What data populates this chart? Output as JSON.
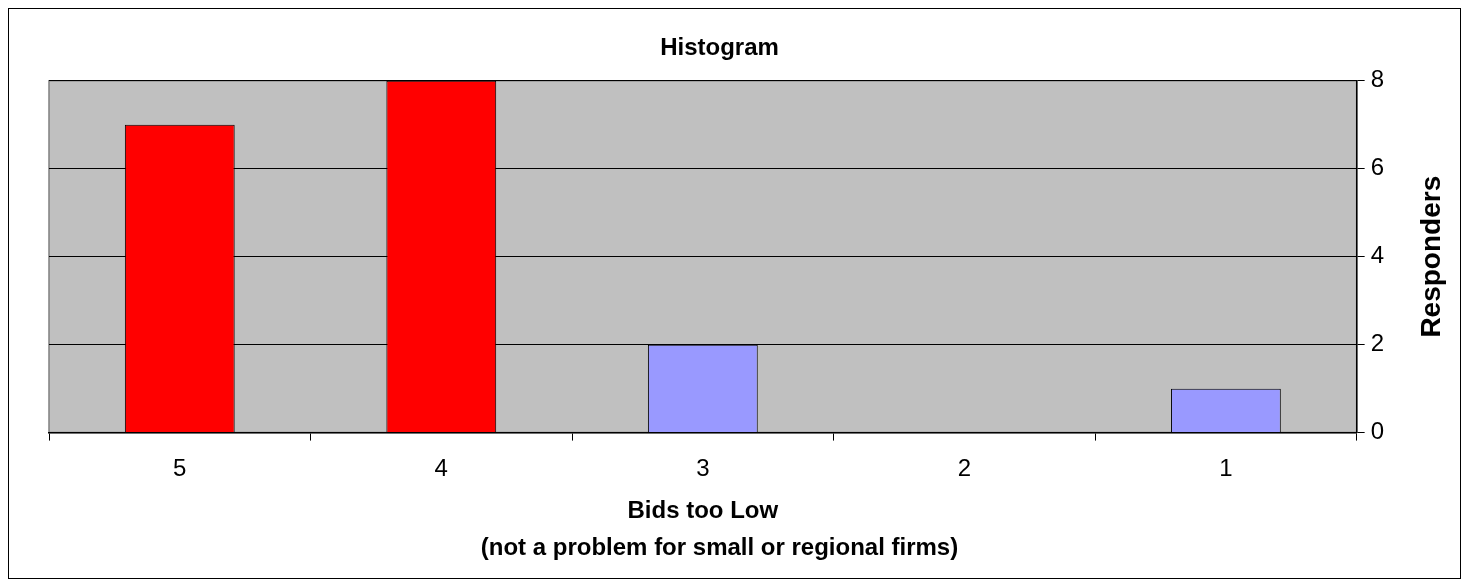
{
  "chart_data": {
    "type": "bar",
    "title": "Histogram",
    "xlabel": "Bids too Low",
    "ylabel": "Responders",
    "annotations": [
      "(not a problem for small or regional firms)"
    ],
    "categories": [
      "5",
      "4",
      "3",
      "2",
      "1"
    ],
    "values": [
      7,
      8,
      2,
      0,
      1
    ],
    "colors": [
      "#ff0000",
      "#ff0000",
      "#9999ff",
      "#9999ff",
      "#9999ff"
    ],
    "ylim": [
      0,
      8
    ],
    "yticks": [
      0,
      2,
      4,
      6,
      8
    ],
    "grid": "y",
    "legend": false
  }
}
